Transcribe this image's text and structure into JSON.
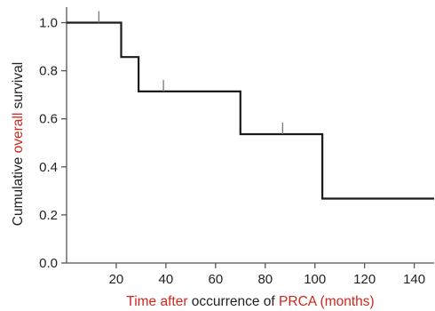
{
  "chart_data": {
    "type": "line",
    "step": true,
    "series": [
      {
        "x": [
          0,
          22,
          22,
          29,
          29,
          70,
          70,
          103,
          103,
          148
        ],
        "y": [
          1.0,
          1.0,
          0.857,
          0.857,
          0.714,
          0.714,
          0.536,
          0.536,
          0.268,
          0.268
        ],
        "color": "#1a1a1a"
      }
    ],
    "censored": [
      {
        "x": 13,
        "y": 1.0
      },
      {
        "x": 39,
        "y": 0.714
      },
      {
        "x": 87,
        "y": 0.536
      }
    ],
    "xlim": [
      0,
      148
    ],
    "ylim": [
      0,
      1.05
    ],
    "x_ticks": [
      20,
      40,
      60,
      80,
      100,
      120,
      140
    ],
    "x_tick_labels": [
      "20",
      "40",
      "60",
      "80",
      "100",
      "120",
      "140"
    ],
    "y_ticks": [
      0,
      0.2,
      0.4,
      0.6,
      0.8,
      1.0
    ],
    "y_tick_labels": [
      "0.0",
      "0.2",
      "0.4",
      "0.6",
      "0.8",
      "1.0"
    ],
    "xlabel_parts": [
      {
        "text": "Time after",
        "color": "#d0271d"
      },
      {
        "text": " occurrence of ",
        "color": "#222222"
      },
      {
        "text": "PRCA (months)",
        "color": "#d0271d"
      }
    ],
    "ylabel_parts": [
      {
        "text": "Cumulative ",
        "color": "#222222"
      },
      {
        "text": "overall",
        "color": "#d0271d"
      },
      {
        "text": " survival",
        "color": "#222222"
      }
    ],
    "grid": false
  }
}
